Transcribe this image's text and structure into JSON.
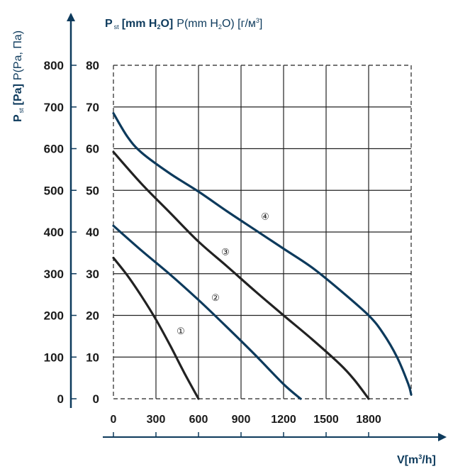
{
  "chart_data": {
    "type": "line",
    "title": "",
    "ylabel_bold": "P",
    "ylabel_sub": "st",
    "ylabel_unit": "[Pa]",
    "ylabel_rest": "P(Pa, Па)",
    "y2label_bold": "P",
    "y2label_sub": "st",
    "y2label_unit_a": "[mm H",
    "y2label_unit_sub": "2",
    "y2label_unit_b": "O]",
    "y2label_rest_a": "P(mm H",
    "y2label_rest_sub": "2",
    "y2label_rest_b": "O) [г/м",
    "y2label_rest_sup": "3",
    "y2label_rest_c": "]",
    "xlabel_a": "V[m",
    "xlabel_sup": "3",
    "xlabel_b": "/h]",
    "xlim": [
      0,
      2100
    ],
    "ylim": [
      0,
      800
    ],
    "y2lim": [
      0,
      80
    ],
    "xticks": [
      0,
      300,
      600,
      900,
      1200,
      1500,
      1800
    ],
    "xtick_labels": [
      "0",
      "300",
      "600",
      "900",
      "1200",
      "1500",
      "1800"
    ],
    "yticks": [
      0,
      100,
      200,
      300,
      400,
      500,
      600,
      700,
      800
    ],
    "ytick_labels": [
      "0",
      "100",
      "200",
      "300",
      "400",
      "500",
      "600",
      "700",
      "800"
    ],
    "y2tick_labels": [
      "0",
      "10",
      "20",
      "30",
      "40",
      "50",
      "60",
      "70",
      "80"
    ],
    "grid": true,
    "series": [
      {
        "label": "①",
        "color": "#222222",
        "label_at": [
          475,
          165
        ],
        "points": [
          [
            0,
            338
          ],
          [
            100,
            295
          ],
          [
            200,
            245
          ],
          [
            300,
            190
          ],
          [
            400,
            128
          ],
          [
            500,
            62
          ],
          [
            600,
            0
          ]
        ]
      },
      {
        "label": "②",
        "color": "#0d3a5c",
        "label_at": [
          720,
          245
        ],
        "points": [
          [
            0,
            415
          ],
          [
            200,
            355
          ],
          [
            400,
            298
          ],
          [
            600,
            237
          ],
          [
            800,
            172
          ],
          [
            1000,
            105
          ],
          [
            1200,
            35
          ],
          [
            1320,
            0
          ]
        ]
      },
      {
        "label": "③",
        "color": "#222222",
        "label_at": [
          790,
          355
        ],
        "points": [
          [
            0,
            592
          ],
          [
            200,
            515
          ],
          [
            400,
            446
          ],
          [
            600,
            377
          ],
          [
            800,
            318
          ],
          [
            1000,
            258
          ],
          [
            1200,
            200
          ],
          [
            1400,
            143
          ],
          [
            1600,
            82
          ],
          [
            1700,
            45
          ],
          [
            1800,
            0
          ]
        ]
      },
      {
        "label": "④",
        "color": "#0d3a5c",
        "label_at": [
          1070,
          440
        ],
        "points": [
          [
            0,
            685
          ],
          [
            100,
            628
          ],
          [
            200,
            590
          ],
          [
            400,
            540
          ],
          [
            600,
            497
          ],
          [
            800,
            450
          ],
          [
            1000,
            405
          ],
          [
            1200,
            360
          ],
          [
            1400,
            315
          ],
          [
            1600,
            260
          ],
          [
            1800,
            200
          ],
          [
            1900,
            158
          ],
          [
            2000,
            100
          ],
          [
            2080,
            35
          ],
          [
            2100,
            10
          ]
        ]
      }
    ]
  },
  "colors": {
    "accent": "#0d3a5c",
    "ink": "#1a1a1a",
    "grid": "#222222"
  }
}
